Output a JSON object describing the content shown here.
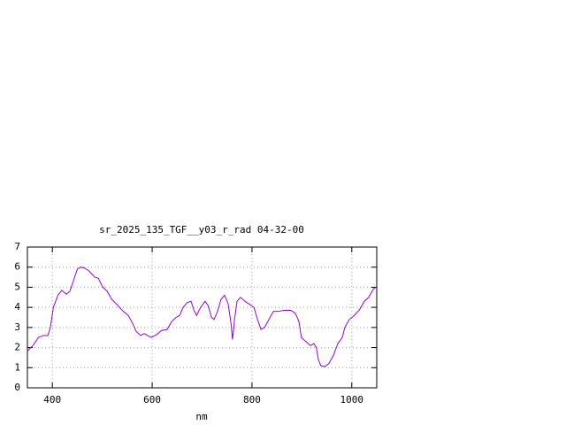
{
  "chart_data": {
    "type": "line",
    "title": "sr_2025_135_TGF__y03_r_rad 04-32-00",
    "xlabel": "nm",
    "xlim": [
      350,
      1050
    ],
    "xticks": [
      400,
      600,
      800,
      1000
    ],
    "ylim": [
      0,
      7
    ],
    "yticks": [
      0,
      1,
      2,
      3,
      4,
      5,
      6,
      7
    ],
    "grid": true,
    "x": [
      349,
      361,
      372,
      382,
      391,
      396,
      402,
      411,
      419,
      428,
      435,
      442,
      450,
      457,
      465,
      474,
      485,
      492,
      501,
      510,
      519,
      531,
      542,
      552,
      561,
      568,
      577,
      584,
      591,
      598,
      609,
      619,
      630,
      639,
      648,
      655,
      662,
      671,
      678,
      683,
      689,
      697,
      706,
      712,
      719,
      724,
      731,
      738,
      745,
      752,
      758,
      761,
      765,
      770,
      777,
      786,
      795,
      804,
      811,
      818,
      825,
      834,
      843,
      853,
      864,
      878,
      887,
      894,
      899,
      908,
      917,
      924,
      929,
      933,
      938,
      945,
      954,
      963,
      972,
      981,
      986,
      995,
      1005,
      1016,
      1025,
      1034,
      1043,
      1048
    ],
    "series": [
      {
        "name": "y03_r_rad",
        "color": "#9400d3",
        "values": [
          1.8,
          2.1,
          2.5,
          2.6,
          2.6,
          3.0,
          4.0,
          4.6,
          4.85,
          4.65,
          4.8,
          5.3,
          5.9,
          6.0,
          5.95,
          5.8,
          5.5,
          5.45,
          5.0,
          4.8,
          4.4,
          4.1,
          3.8,
          3.6,
          3.2,
          2.8,
          2.6,
          2.7,
          2.6,
          2.5,
          2.65,
          2.85,
          2.9,
          3.3,
          3.5,
          3.6,
          4.0,
          4.25,
          4.3,
          3.9,
          3.6,
          4.0,
          4.3,
          4.1,
          3.5,
          3.4,
          3.8,
          4.4,
          4.6,
          4.2,
          3.2,
          2.4,
          3.4,
          4.3,
          4.5,
          4.3,
          4.15,
          4.0,
          3.4,
          2.9,
          3.0,
          3.4,
          3.8,
          3.8,
          3.85,
          3.85,
          3.7,
          3.3,
          2.5,
          2.3,
          2.1,
          2.2,
          2.0,
          1.4,
          1.1,
          1.05,
          1.2,
          1.6,
          2.2,
          2.5,
          3.0,
          3.4,
          3.6,
          3.9,
          4.3,
          4.5,
          4.9,
          5.0
        ]
      }
    ]
  }
}
